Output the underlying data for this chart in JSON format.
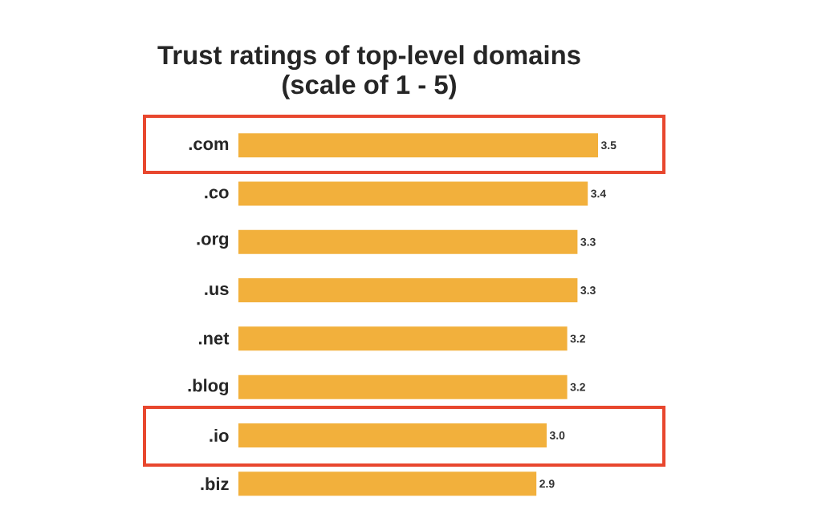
{
  "chart_data": {
    "type": "bar",
    "orientation": "horizontal",
    "title": "Trust ratings of top-level domains\n(scale of 1 - 5)",
    "categories": [
      ".com",
      ".co",
      ".org",
      ".us",
      ".net",
      ".blog",
      ".io",
      ".biz"
    ],
    "values": [
      3.5,
      3.4,
      3.3,
      3.3,
      3.2,
      3.2,
      3.0,
      2.9
    ],
    "value_labels": [
      "3.5",
      "3.4",
      "3.3",
      "3.3",
      "3.2",
      "3.2",
      "3.0",
      "2.9"
    ],
    "color": "#f2b03c"
  }
}
